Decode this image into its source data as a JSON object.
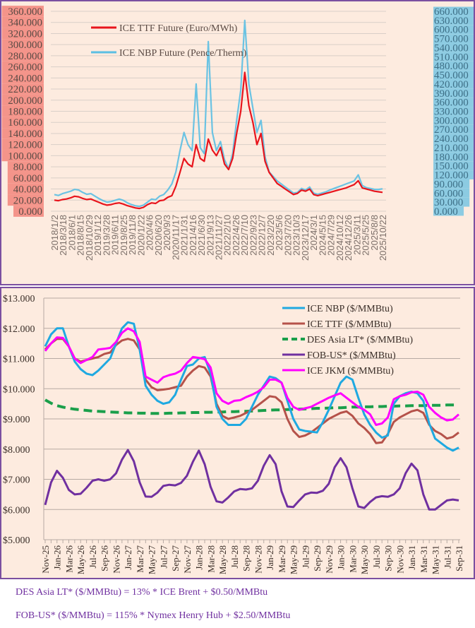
{
  "chart_data": [
    {
      "type": "line",
      "title": "",
      "xlabel": "",
      "ylabel": "",
      "grid": true,
      "legend_position": "top-left",
      "y_left": {
        "min": 0,
        "max": 360,
        "step": 20,
        "tick_labels": [
          "0.000",
          "20.000",
          "40.000",
          "60.000",
          "80.000",
          "100.000",
          "120.000",
          "140.000",
          "160.000",
          "180.000",
          "200.000",
          "220.000",
          "240.000",
          "260.000",
          "280.000",
          "300.000",
          "320.000",
          "340.000",
          "360.000"
        ],
        "highlight_color": "#f4948a"
      },
      "y_right": {
        "min": 0,
        "max": 660,
        "step": 30,
        "tick_labels": [
          "0.000",
          "30.000",
          "60.000",
          "90.000",
          "120.000",
          "150.000",
          "180.000",
          "210.000",
          "240.000",
          "270.000",
          "300.000",
          "330.000",
          "360.000",
          "390.000",
          "420.000",
          "450.000",
          "480.000",
          "510.000",
          "540.000",
          "570.000",
          "600.000",
          "630.000",
          "660.000"
        ],
        "highlight_color": "#8ccbe2"
      },
      "x_tick_labels": [
        "2018/1/2",
        "2018/3/18",
        "2018/6/1",
        "2018/8/15",
        "2018/10/29",
        "2019/1/12",
        "2019/3/28",
        "2019/6/11",
        "2019/8/25",
        "2019/11/8",
        "2020/1/22",
        "2020/4/6",
        "2020/6/20",
        "2020/9/3",
        "2020/11/17",
        "2021/1/31",
        "2021/4/16",
        "2021/6/30",
        "2021/9/13",
        "2021/11/27",
        "2022/2/10",
        "2022/4/26",
        "2022/7/10",
        "2022/9/23",
        "2022/12/7",
        "2023/2/20",
        "2023/5/6",
        "2023/7/20",
        "2023/10/3",
        "2023/12/17",
        "2024/3/1",
        "2024/5/15",
        "2024/7/29",
        "2024/10/12",
        "2024/12/26",
        "2025/3/11",
        "2025/5/25",
        "2025/8/8",
        "2025/10/22"
      ],
      "series": [
        {
          "name": "ICE TTF Future (Euro/MWh)",
          "axis": "left",
          "color": "#e8141c",
          "values": [
            20,
            19,
            21,
            22,
            24,
            27,
            26,
            23,
            21,
            22,
            19,
            16,
            13,
            11,
            12,
            14,
            15,
            13,
            10,
            8,
            6,
            5,
            7,
            12,
            15,
            14,
            19,
            20,
            25,
            28,
            45,
            70,
            95,
            85,
            80,
            120,
            95,
            90,
            130,
            110,
            100,
            115,
            85,
            75,
            95,
            140,
            180,
            250,
            190,
            160,
            120,
            140,
            90,
            70,
            60,
            50,
            45,
            40,
            35,
            30,
            32,
            38,
            36,
            40,
            30,
            28,
            30,
            32,
            34,
            36,
            38,
            40,
            42,
            45,
            48,
            55,
            42,
            40,
            38,
            36,
            35,
            34
          ]
        },
        {
          "name": "ICE NBP Future (Pence/Therm)",
          "axis": "right",
          "color": "#5bbfe3",
          "values": [
            55,
            52,
            58,
            62,
            66,
            72,
            70,
            62,
            56,
            58,
            50,
            42,
            35,
            30,
            32,
            36,
            40,
            36,
            28,
            22,
            18,
            16,
            20,
            30,
            40,
            38,
            50,
            55,
            70,
            90,
            130,
            200,
            260,
            220,
            200,
            420,
            210,
            190,
            560,
            260,
            200,
            230,
            170,
            140,
            190,
            300,
            400,
            630,
            420,
            340,
            260,
            300,
            180,
            130,
            115,
            100,
            90,
            80,
            70,
            60,
            62,
            75,
            70,
            80,
            60,
            56,
            60,
            64,
            70,
            75,
            80,
            85,
            90,
            95,
            100,
            120,
            85,
            78,
            75,
            72,
            72,
            74
          ]
        }
      ]
    },
    {
      "type": "line",
      "title": "",
      "xlabel": "",
      "ylabel": "",
      "grid": true,
      "legend_position": "top-right",
      "ylim": [
        5,
        13
      ],
      "y_tick_labels": [
        "$5.000",
        "$6.000",
        "$7.000",
        "$8.000",
        "$9.000",
        "$10.000",
        "$11.000",
        "$12.000",
        "$13.000"
      ],
      "categories": [
        "Nov-25",
        "Dec-25",
        "Jan-26",
        "Feb-26",
        "Mar-26",
        "Apr-26",
        "May-26",
        "Jun-26",
        "Jul-26",
        "Aug-26",
        "Sep-26",
        "Oct-26",
        "Nov-26",
        "Dec-26",
        "Jan-27",
        "Feb-27",
        "Mar-27",
        "Apr-27",
        "May-27",
        "Jun-27",
        "Jul-27",
        "Aug-27",
        "Sep-27",
        "Oct-27",
        "Nov-27",
        "Dec-27",
        "Jan-28",
        "Feb-28",
        "Mar-28",
        "Apr-28",
        "May-28",
        "Jun-28",
        "Jul-28",
        "Aug-28",
        "Sep-28",
        "Oct-28",
        "Nov-28",
        "Dec-28",
        "Jan-29",
        "Feb-29",
        "Mar-29",
        "Apr-29",
        "May-29",
        "Jun-29",
        "Jul-29",
        "Aug-29",
        "Sep-29",
        "Oct-29",
        "Nov-29",
        "Dec-29",
        "Jan-30",
        "Feb-30",
        "Mar-30",
        "Apr-30",
        "May-30",
        "Jun-30",
        "Jul-30",
        "Aug-30",
        "Sep-30",
        "Oct-30",
        "Nov-30",
        "Dec-30",
        "Jan-31",
        "Feb-31",
        "Mar-31",
        "Apr-31",
        "May-31",
        "Jun-31",
        "Jul-31",
        "Aug-31",
        "Sep-31"
      ],
      "x_tick_labels": [
        "Nov-25",
        "Jan-26",
        "Mar-26",
        "May-26",
        "Jul-26",
        "Sep-26",
        "Nov-26",
        "Jan-27",
        "Mar-27",
        "May-27",
        "Jul-27",
        "Sep-27",
        "Nov-27",
        "Jan-28",
        "Mar-28",
        "May-28",
        "Jul-28",
        "Sep-28",
        "Nov-28",
        "Jan-29",
        "Mar-29",
        "May-29",
        "Jul-29",
        "Sep-29",
        "Nov-29",
        "Jan-30",
        "Mar-30",
        "May-30",
        "Jul-30",
        "Sep-30",
        "Nov-30",
        "Jan-31",
        "Mar-31",
        "May-31",
        "Jul-31",
        "Sep-31"
      ],
      "series": [
        {
          "name": "ICE NBP ($/MMBtu)",
          "color": "#1fa9e1",
          "dash": false,
          "values": [
            11.4,
            11.8,
            12.0,
            12.0,
            11.4,
            10.9,
            10.65,
            10.5,
            10.45,
            10.6,
            10.8,
            11.0,
            11.5,
            12.0,
            12.2,
            12.15,
            11.3,
            10.1,
            9.8,
            9.6,
            9.5,
            9.55,
            9.8,
            10.3,
            10.75,
            10.8,
            11.0,
            11.05,
            10.5,
            9.4,
            9.0,
            8.8,
            8.8,
            8.8,
            9.0,
            9.4,
            9.8,
            10.1,
            10.4,
            10.35,
            10.2,
            9.6,
            9.0,
            8.65,
            8.6,
            8.58,
            8.55,
            8.9,
            9.3,
            9.75,
            10.2,
            10.4,
            10.3,
            9.7,
            9.15,
            8.8,
            8.55,
            8.38,
            8.45,
            9.5,
            9.75,
            9.85,
            9.9,
            9.85,
            9.6,
            8.85,
            8.35,
            8.2,
            8.05,
            7.95,
            8.05
          ]
        },
        {
          "name": "ICE TTF ($/MMBtu)",
          "color": "#b5524a",
          "dash": false,
          "values": [
            11.3,
            11.5,
            11.65,
            11.65,
            11.4,
            11.0,
            10.9,
            10.95,
            11.0,
            11.05,
            11.15,
            11.2,
            11.45,
            11.6,
            11.65,
            11.6,
            11.3,
            10.3,
            10.05,
            9.95,
            9.97,
            10.0,
            10.05,
            10.1,
            10.4,
            10.6,
            10.75,
            10.7,
            10.4,
            9.5,
            9.1,
            9.0,
            9.05,
            9.1,
            9.2,
            9.3,
            9.45,
            9.6,
            9.75,
            9.72,
            9.55,
            9.0,
            8.6,
            8.4,
            8.45,
            8.55,
            8.7,
            8.85,
            9.0,
            9.1,
            9.2,
            9.25,
            9.1,
            8.85,
            8.7,
            8.5,
            8.2,
            8.22,
            8.5,
            8.9,
            9.05,
            9.15,
            9.25,
            9.3,
            9.2,
            8.8,
            8.6,
            8.5,
            8.35,
            8.4,
            8.55
          ]
        },
        {
          "name": "DES Asia LT* ($/MMBtu)",
          "color": "#1a9f4a",
          "dash": true,
          "values": [
            9.63,
            9.52,
            9.44,
            9.39,
            9.35,
            9.32,
            9.3,
            9.28,
            9.26,
            9.25,
            9.24,
            9.23,
            9.22,
            9.21,
            9.2,
            9.2,
            9.19,
            9.19,
            9.18,
            9.18,
            9.18,
            9.19,
            9.19,
            9.2,
            9.2,
            9.21,
            9.21,
            9.22,
            9.22,
            9.23,
            9.23,
            9.24,
            9.24,
            9.25,
            9.25,
            9.26,
            9.27,
            9.28,
            9.29,
            9.3,
            9.3,
            9.31,
            9.32,
            9.32,
            9.33,
            9.34,
            9.35,
            9.35,
            9.36,
            9.37,
            9.37,
            9.38,
            9.39,
            9.39,
            9.4,
            9.4,
            9.41,
            9.41,
            9.42,
            9.42,
            9.43,
            9.43,
            9.44,
            9.44,
            9.44,
            9.45,
            9.45,
            9.45,
            9.46,
            9.46,
            9.46
          ]
        },
        {
          "name": "FOB-US* ($/MMBtu)",
          "color": "#7030a0",
          "dash": false,
          "values": [
            6.15,
            6.9,
            7.28,
            7.05,
            6.65,
            6.5,
            6.52,
            6.72,
            6.95,
            7.0,
            6.95,
            7.0,
            7.2,
            7.65,
            7.97,
            7.6,
            6.9,
            6.43,
            6.42,
            6.56,
            6.78,
            6.82,
            6.8,
            6.88,
            7.12,
            7.58,
            7.95,
            7.5,
            6.75,
            6.27,
            6.23,
            6.4,
            6.6,
            6.68,
            6.66,
            6.7,
            6.95,
            7.45,
            7.8,
            7.5,
            6.6,
            6.1,
            6.08,
            6.3,
            6.5,
            6.56,
            6.55,
            6.62,
            6.85,
            7.4,
            7.7,
            7.4,
            6.7,
            6.1,
            6.05,
            6.25,
            6.4,
            6.44,
            6.42,
            6.5,
            6.7,
            7.2,
            7.52,
            7.3,
            6.5,
            6.0,
            6.0,
            6.15,
            6.3,
            6.33,
            6.3
          ]
        },
        {
          "name": "ICE JKM ($/MMBtu)",
          "color": "#ff00ff",
          "dash": false,
          "values": [
            11.25,
            11.5,
            11.7,
            11.68,
            11.4,
            11.0,
            10.85,
            10.95,
            11.05,
            11.3,
            11.32,
            11.35,
            11.55,
            11.85,
            12.0,
            11.9,
            11.55,
            10.4,
            10.3,
            10.2,
            10.38,
            10.45,
            10.5,
            10.6,
            10.85,
            11.05,
            11.02,
            10.98,
            10.7,
            9.85,
            9.6,
            9.5,
            9.6,
            9.62,
            9.72,
            9.8,
            9.9,
            10.05,
            10.3,
            10.3,
            10.2,
            9.7,
            9.4,
            9.3,
            9.35,
            9.4,
            9.5,
            9.6,
            9.7,
            9.78,
            9.85,
            9.7,
            9.55,
            9.4,
            9.3,
            9.15,
            8.8,
            8.85,
            9.05,
            9.65,
            9.75,
            9.8,
            9.88,
            9.9,
            9.8,
            9.4,
            9.2,
            9.05,
            8.95,
            8.98,
            9.15
          ]
        }
      ]
    }
  ],
  "notes": [
    "DES Asia LT* ($/MMBtu) = 13% * ICE Brent + $0.50/MMBtu",
    "FOB-US* ($/MMBtu) = 115% * Nymex Henry Hub + $2.50/MMBtu"
  ]
}
